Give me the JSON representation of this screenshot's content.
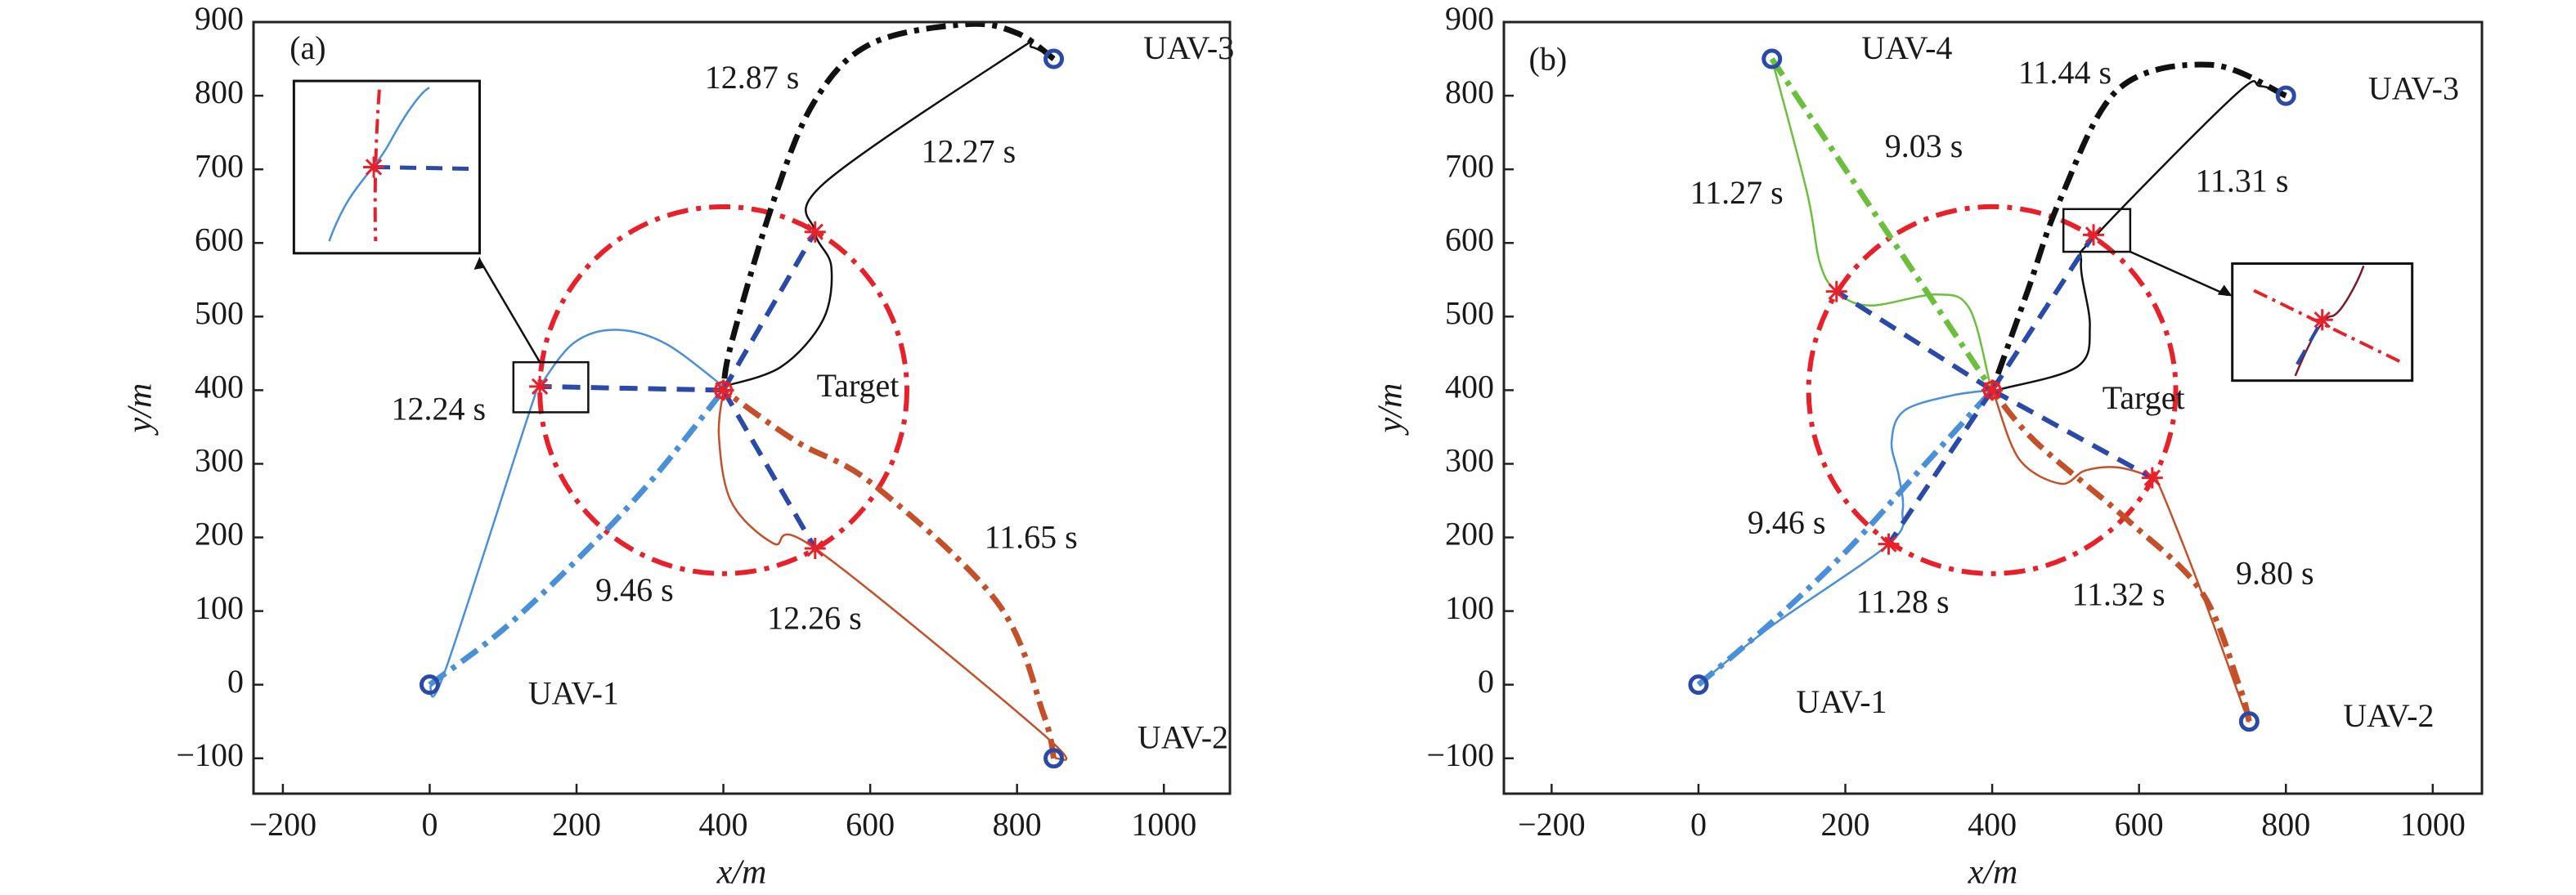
{
  "chart_data": [
    {
      "type": "line",
      "panel_label": "(a)",
      "xlabel": "x/m",
      "ylabel": "y/m",
      "xlim": [
        -240,
        1090
      ],
      "ylim": [
        -148,
        900
      ],
      "xticks": [
        -200,
        0,
        200,
        400,
        600,
        800,
        1000
      ],
      "xtick_labels": [
        "−200",
        "0",
        "200",
        "400",
        "600",
        "800",
        "1000"
      ],
      "yticks": [
        -100,
        0,
        100,
        200,
        300,
        400,
        500,
        600,
        700,
        800,
        900
      ],
      "ytick_labels": [
        "−100",
        "0",
        "100",
        "200",
        "300",
        "400",
        "500",
        "600",
        "700",
        "800",
        "900"
      ],
      "grid": false,
      "target": {
        "label": "Target",
        "x": 400,
        "y": 400,
        "radius": 250
      },
      "uavs": [
        {
          "label": "UAV-1",
          "x": 0,
          "y": 0
        },
        {
          "label": "UAV-2",
          "x": 850,
          "y": -100
        },
        {
          "label": "UAV-3",
          "x": 850,
          "y": 850
        }
      ],
      "intercepts": [
        [
          150,
          405
        ],
        [
          525,
          615
        ],
        [
          525,
          185
        ]
      ],
      "series": [
        {
          "name": "UAV-1 direct",
          "style": "dashdot",
          "color": "#4a90d9",
          "points": [
            [
              0,
              0
            ],
            [
              100,
              75
            ],
            [
              207,
              176
            ],
            [
              300,
              275
            ],
            [
              400,
              400
            ]
          ]
        },
        {
          "name": "UAV-2 direct",
          "style": "dashdot",
          "color": "#c4502a",
          "points": [
            [
              850,
              -100
            ],
            [
              836,
              -40
            ],
            [
              773,
              112
            ],
            [
              604,
              272
            ],
            [
              500,
              330
            ],
            [
              400,
              400
            ]
          ]
        },
        {
          "name": "UAV-3 direct",
          "style": "dashdot",
          "color": "#111111",
          "points": [
            [
              850,
              850
            ],
            [
              800,
              885
            ],
            [
              730,
              897
            ],
            [
              600,
              870
            ],
            [
              524,
              792
            ],
            [
              468,
              656
            ],
            [
              411,
              464
            ],
            [
              400,
              400
            ]
          ]
        },
        {
          "name": "UAV-1 cooperative",
          "style": "solid",
          "color": "#4a90d9",
          "points": [
            [
              0,
              0
            ],
            [
              20,
              16
            ],
            [
              139,
              380
            ],
            [
              150,
              405
            ],
            [
              196,
              464
            ],
            [
              252,
              482
            ],
            [
              320,
              464
            ],
            [
              400,
              405
            ]
          ]
        },
        {
          "name": "UAV-2 cooperative",
          "style": "solid",
          "color": "#c4502a",
          "points": [
            [
              850,
              -100
            ],
            [
              841,
              -72
            ],
            [
              525,
              185
            ],
            [
              468,
              192
            ],
            [
              411,
              248
            ],
            [
              394,
              336
            ],
            [
              400,
              400
            ]
          ]
        },
        {
          "name": "UAV-3 cooperative",
          "style": "solid",
          "color": "#111111",
          "points": [
            [
              850,
              850
            ],
            [
              820,
              866
            ],
            [
              795,
              858
            ],
            [
              536,
              680
            ],
            [
              525,
              615
            ],
            [
              547,
              568
            ],
            [
              536,
              496
            ],
            [
              479,
              432
            ],
            [
              400,
              405
            ]
          ]
        }
      ],
      "sight_lines": [
        [
          [
            400,
            400
          ],
          [
            150,
            405
          ]
        ],
        [
          [
            400,
            400
          ],
          [
            525,
            615
          ]
        ],
        [
          [
            400,
            400
          ],
          [
            525,
            185
          ]
        ]
      ],
      "annotations": [
        "12.87 s",
        "12.27 s",
        "12.24 s",
        "9.46 s",
        "12.26 s",
        "11.65 s"
      ]
    },
    {
      "type": "line",
      "panel_label": "(b)",
      "xlabel": "x/m",
      "ylabel": "y/m",
      "xlim": [
        -265,
        1067
      ],
      "ylim": [
        -148,
        900
      ],
      "xticks": [
        -200,
        0,
        200,
        400,
        600,
        800,
        1000
      ],
      "xtick_labels": [
        "−200",
        "0",
        "200",
        "400",
        "600",
        "800",
        "1000"
      ],
      "yticks": [
        -100,
        0,
        100,
        200,
        300,
        400,
        500,
        600,
        700,
        800,
        900
      ],
      "ytick_labels": [
        "−100",
        "0",
        "100",
        "200",
        "300",
        "400",
        "500",
        "600",
        "700",
        "800",
        "900"
      ],
      "grid": false,
      "target": {
        "label": "Target",
        "x": 400,
        "y": 400,
        "radius": 250
      },
      "uavs": [
        {
          "label": "UAV-1",
          "x": 0,
          "y": 0
        },
        {
          "label": "UAV-2",
          "x": 750,
          "y": -50
        },
        {
          "label": "UAV-3",
          "x": 800,
          "y": 800
        },
        {
          "label": "UAV-4",
          "x": 100,
          "y": 850
        }
      ],
      "intercepts": [
        [
          188,
          534
        ],
        [
          538,
          611
        ],
        [
          618,
          281
        ],
        [
          259,
          191
        ]
      ],
      "series": [
        {
          "name": "UAV-1 direct",
          "style": "dashdot",
          "color": "#4a90d9",
          "points": [
            [
              0,
              0
            ],
            [
              100,
              85
            ],
            [
              200,
              180
            ],
            [
              300,
              290
            ],
            [
              400,
              400
            ]
          ]
        },
        {
          "name": "UAV-2 direct",
          "style": "dashdot",
          "color": "#c4502a",
          "points": [
            [
              750,
              -50
            ],
            [
              736,
              0
            ],
            [
              685,
              126
            ],
            [
              584,
              224
            ],
            [
              459,
              330
            ],
            [
              400,
              400
            ]
          ]
        },
        {
          "name": "UAV-3 direct",
          "style": "dashdot",
          "color": "#111111",
          "points": [
            [
              800,
              800
            ],
            [
              697,
              842
            ],
            [
              572,
              809
            ],
            [
              493,
              660
            ],
            [
              448,
              534
            ],
            [
              400,
              400
            ]
          ]
        },
        {
          "name": "UAV-4 direct",
          "style": "dashdot",
          "color": "#6cbf3c",
          "points": [
            [
              100,
              850
            ],
            [
              250,
              625
            ],
            [
              400,
              400
            ]
          ]
        },
        {
          "name": "UAV-1 cooperative",
          "style": "solid",
          "color": "#4a90d9",
          "points": [
            [
              0,
              0
            ],
            [
              100,
              80
            ],
            [
              259,
              191
            ],
            [
              278,
              236
            ],
            [
              273,
              283
            ],
            [
              263,
              330
            ],
            [
              280,
              372
            ],
            [
              346,
              393
            ],
            [
              400,
              400
            ]
          ]
        },
        {
          "name": "UAV-2 cooperative",
          "style": "solid",
          "color": "#c4502a",
          "points": [
            [
              750,
              -50
            ],
            [
              742,
              -31
            ],
            [
              685,
              126
            ],
            [
              629,
              267
            ],
            [
              618,
              281
            ],
            [
              572,
              295
            ],
            [
              527,
              291
            ],
            [
              493,
              273
            ],
            [
              437,
              306
            ],
            [
              403,
              393
            ],
            [
              400,
              400
            ]
          ]
        },
        {
          "name": "UAV-3 cooperative",
          "style": "solid",
          "color": "#111111",
          "points": [
            [
              800,
              800
            ],
            [
              765,
              813
            ],
            [
              731,
              801
            ],
            [
              544,
              613
            ],
            [
              521,
              574
            ],
            [
              533,
              487
            ],
            [
              516,
              432
            ],
            [
              414,
              402
            ],
            [
              400,
              400
            ]
          ]
        },
        {
          "name": "UAV-4 cooperative",
          "style": "solid",
          "color": "#6cbf3c",
          "points": [
            [
              100,
              850
            ],
            [
              148,
              668
            ],
            [
              165,
              574
            ],
            [
              188,
              534
            ],
            [
              233,
              515
            ],
            [
              324,
              530
            ],
            [
              369,
              511
            ],
            [
              397,
              409
            ],
            [
              400,
              400
            ]
          ]
        }
      ],
      "sight_lines": [
        [
          [
            400,
            400
          ],
          [
            188,
            534
          ]
        ],
        [
          [
            400,
            400
          ],
          [
            538,
            611
          ]
        ],
        [
          [
            400,
            400
          ],
          [
            618,
            281
          ]
        ],
        [
          [
            400,
            400
          ],
          [
            259,
            191
          ]
        ]
      ],
      "annotations": [
        "11.44 s",
        "9.03 s",
        "11.27 s",
        "11.31 s",
        "9.46 s",
        "11.28 s",
        "11.32 s",
        "9.80 s"
      ]
    }
  ]
}
